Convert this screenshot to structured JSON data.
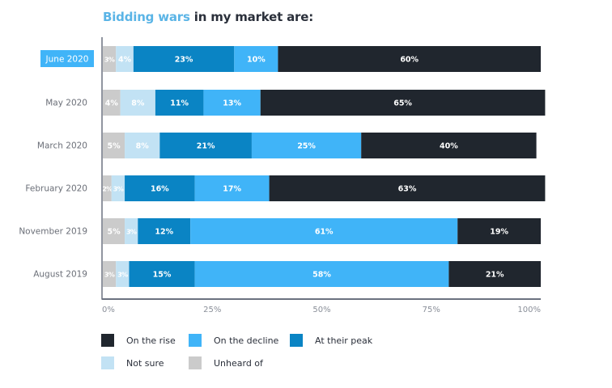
{
  "title": {
    "highlight": "Bidding wars",
    "rest": " in my market are:",
    "highlight_color": "#5ab4e6"
  },
  "chart_data": {
    "type": "bar",
    "orientation": "horizontal",
    "stacked": true,
    "title": "Bidding wars in my market are:",
    "categories": [
      "June 2020",
      "May 2020",
      "March 2020",
      "February 2020",
      "November 2019",
      "August 2019"
    ],
    "highlighted_category": "June 2020",
    "series": [
      {
        "name": "Unheard of",
        "color": "#cbcbcb",
        "values": [
          3,
          4,
          5,
          2,
          5,
          3
        ],
        "labels": [
          "3%",
          "4%",
          "5%",
          "2%",
          "5%",
          "3%"
        ]
      },
      {
        "name": "Not sure",
        "color": "#c2e2f4",
        "values": [
          4,
          8,
          8,
          3,
          3,
          3
        ],
        "labels": [
          "4%",
          "8%",
          "8%",
          "3%",
          "3%",
          "3%"
        ]
      },
      {
        "name": "At their peak",
        "color": "#0a84c4",
        "values": [
          23,
          11,
          21,
          16,
          12,
          15
        ],
        "labels": [
          "23%",
          "11%",
          "21%",
          "16%",
          "12%",
          "15%"
        ]
      },
      {
        "name": "On the decline",
        "color": "#40b4f8",
        "values": [
          10,
          13,
          25,
          17,
          61,
          58
        ],
        "labels": [
          "10%",
          "13%",
          "25%",
          "17%",
          "61%",
          "58%"
        ]
      },
      {
        "name": "On the rise",
        "color": "#20262e",
        "values": [
          60,
          65,
          40,
          63,
          19,
          21
        ],
        "labels": [
          "60%",
          "65%",
          "40%",
          "63%",
          "19%",
          "21%"
        ]
      }
    ],
    "xlim": [
      0,
      100
    ],
    "xticks": [
      "0%",
      "25%",
      "50%",
      "75%",
      "100%"
    ],
    "xtick_values": [
      0,
      25,
      50,
      75,
      100
    ],
    "xlabel": "",
    "ylabel": "",
    "grid": false,
    "legend_position": "bottom-left",
    "legend_order": [
      "On the rise",
      "On the decline",
      "At their peak",
      "Not sure",
      "Unheard of"
    ]
  },
  "colors": {
    "axis": "#6b7280",
    "tick_text": "#8a8f99",
    "category_text": "#6b6f78",
    "highlight_bg": "#40b4f8",
    "bar_label_text": "#ffffff"
  }
}
